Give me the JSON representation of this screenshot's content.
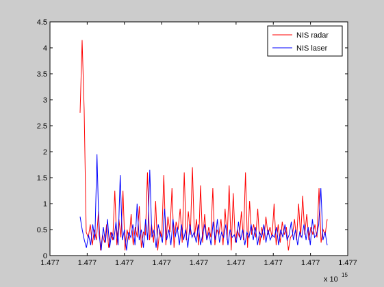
{
  "chart_data": {
    "type": "line",
    "xlabel": "",
    "ylabel": "",
    "title": "",
    "ylim": [
      0,
      4.5
    ],
    "yticks": [
      "0",
      "0.5",
      "1",
      "1.5",
      "2",
      "2.5",
      "3",
      "3.5",
      "4",
      "4.5"
    ],
    "xtick_labels": [
      "1.477",
      "1.477",
      "1.477",
      "1.477",
      "1.477",
      "1.477",
      "1.477",
      "1.477",
      "1.477"
    ],
    "x_exponent_label": "x 10",
    "x_exponent_power": "15",
    "grid": false,
    "legend_position": "top-right",
    "series": [
      {
        "name": "NIS radar",
        "color": "#ff0000",
        "values": [
          2.75,
          4.15,
          2.8,
          0.45,
          0.35,
          0.6,
          0.2,
          0.5,
          0.3,
          0.85,
          0.1,
          0.4,
          0.25,
          0.6,
          0.15,
          0.45,
          0.3,
          1.25,
          0.2,
          0.7,
          0.35,
          1.25,
          0.1,
          0.5,
          0.3,
          0.8,
          0.2,
          0.55,
          0.35,
          0.95,
          0.15,
          0.45,
          0.4,
          1.6,
          0.3,
          0.6,
          0.25,
          1.05,
          0.1,
          0.5,
          0.35,
          1.55,
          0.2,
          0.75,
          0.45,
          1.3,
          0.15,
          0.65,
          0.5,
          0.9,
          0.25,
          1.6,
          0.3,
          0.85,
          0.4,
          1.7,
          0.35,
          0.7,
          0.2,
          1.35,
          0.25,
          0.8,
          0.3,
          0.55,
          0.35,
          1.3,
          0.2,
          0.5,
          0.4,
          0.7,
          0.2,
          0.9,
          0.3,
          1.35,
          0.1,
          1.2,
          0.25,
          0.5,
          0.35,
          0.85,
          0.3,
          1.6,
          0.15,
          1.05,
          0.4,
          0.6,
          0.35,
          0.9,
          0.2,
          0.55,
          0.3,
          0.75,
          0.4,
          0.55,
          0.35,
          1.0,
          0.2,
          0.6,
          0.25,
          0.65,
          0.4,
          0.55,
          0.1,
          0.35,
          0.4,
          0.7,
          0.3,
          1.0,
          0.35,
          1.15,
          0.4,
          0.8,
          0.3,
          0.55,
          0.4,
          0.6,
          0.35,
          1.3,
          0.25,
          0.5,
          0.4,
          0.7
        ]
      },
      {
        "name": "NIS laser",
        "color": "#0000ff",
        "values": [
          0.75,
          0.5,
          0.3,
          0.15,
          0.4,
          0.2,
          0.6,
          0.3,
          1.95,
          0.4,
          0.1,
          0.55,
          0.25,
          0.7,
          0.15,
          0.45,
          0.3,
          0.65,
          0.2,
          1.55,
          0.3,
          0.5,
          0.1,
          0.45,
          0.35,
          0.6,
          0.2,
          1.0,
          0.3,
          0.5,
          0.15,
          0.7,
          0.3,
          1.65,
          0.35,
          0.5,
          0.15,
          0.6,
          0.4,
          0.25,
          0.9,
          0.3,
          0.5,
          0.2,
          0.7,
          0.35,
          0.55,
          0.2,
          0.6,
          0.3,
          0.5,
          0.15,
          0.6,
          0.35,
          0.45,
          0.25,
          0.6,
          0.2,
          0.4,
          0.6,
          0.3,
          0.45,
          0.2,
          0.65,
          0.3,
          0.7,
          0.25,
          0.45,
          0.35,
          0.6,
          0.2,
          0.5,
          0.35,
          0.4,
          0.25,
          0.65,
          0.3,
          0.5,
          0.2,
          0.45,
          0.35,
          0.6,
          0.3,
          0.55,
          0.2,
          0.45,
          0.35,
          0.6,
          0.25,
          0.5,
          0.3,
          0.4,
          0.35,
          0.55,
          0.2,
          0.5,
          0.35,
          0.6,
          0.3,
          0.4,
          0.65,
          0.3,
          0.5,
          0.2,
          0.45,
          0.35,
          0.6,
          0.3,
          0.55,
          0.2,
          0.7,
          0.35,
          0.4,
          0.6,
          1.3,
          0.3,
          0.45,
          0.2
        ]
      }
    ]
  }
}
